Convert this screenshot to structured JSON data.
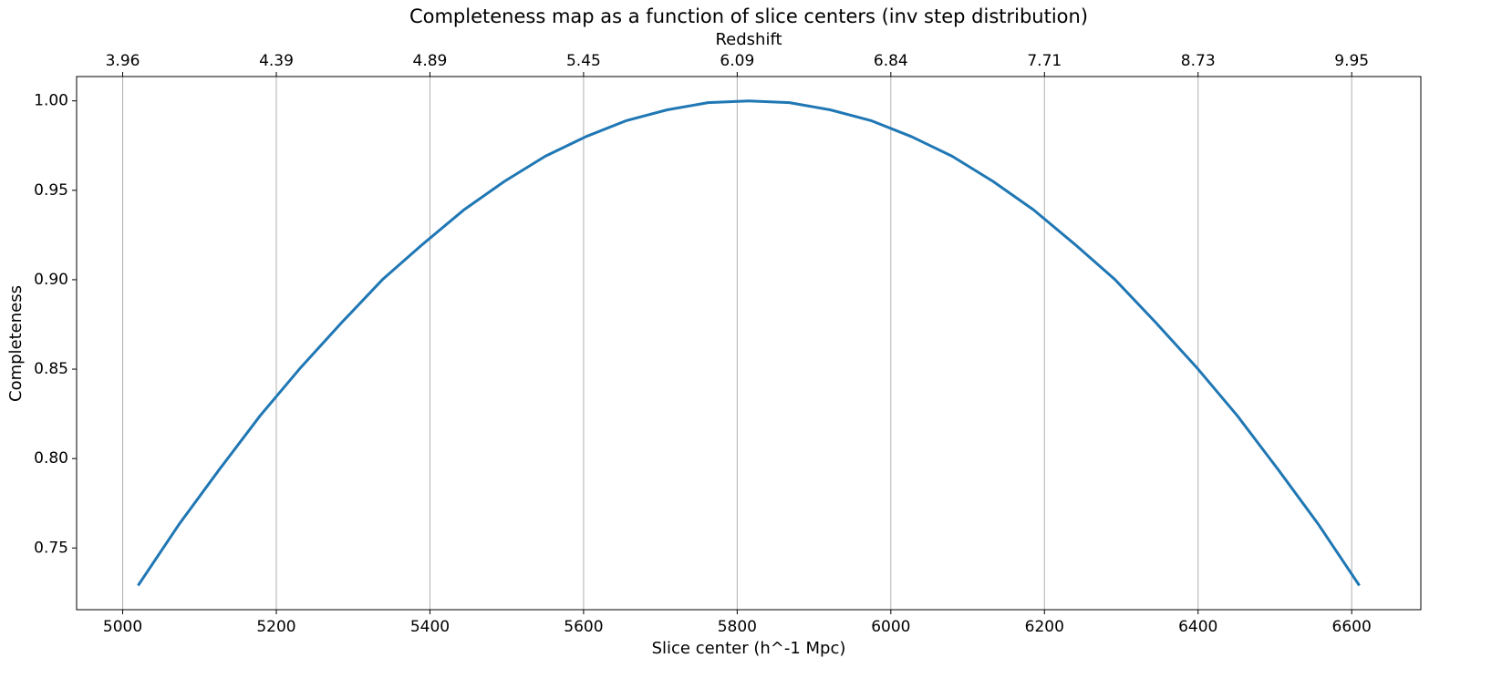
{
  "chart_data": {
    "type": "line",
    "title": "Completeness map as a function of slice centers (inv step distribution)",
    "x_label": "Slice center (h^-1 Mpc)",
    "y_label": "Completeness",
    "x2_label": "Redshift",
    "x": [
      5020,
      5073,
      5126,
      5179,
      5232,
      5285,
      5338,
      5391,
      5444,
      5497,
      5550,
      5603,
      5656,
      5709,
      5762,
      5815,
      5868,
      5921,
      5974,
      6027,
      6080,
      6133,
      6186,
      6239,
      6292,
      6345,
      6398,
      6451,
      6504,
      6557,
      6610
    ],
    "series": [
      {
        "color": "#1f77b4",
        "values": [
          0.729,
          0.763,
          0.794,
          0.824,
          0.851,
          0.876,
          0.9,
          0.92,
          0.939,
          0.955,
          0.969,
          0.98,
          0.989,
          0.995,
          0.999,
          1.0,
          0.999,
          0.995,
          0.989,
          0.98,
          0.969,
          0.955,
          0.939,
          0.92,
          0.9,
          0.876,
          0.851,
          0.824,
          0.794,
          0.763,
          0.729
        ]
      }
    ],
    "xlim": [
      4940,
      6690
    ],
    "ylim": [
      0.7155,
      1.0136
    ],
    "xticks": [
      5000,
      5200,
      5400,
      5600,
      5800,
      6000,
      6200,
      6400,
      6600
    ],
    "x2ticks": [
      {
        "value": 5000,
        "label": "3.96"
      },
      {
        "value": 5200,
        "label": "4.39"
      },
      {
        "value": 5400,
        "label": "4.89"
      },
      {
        "value": 5600,
        "label": "5.45"
      },
      {
        "value": 5800,
        "label": "6.09"
      },
      {
        "value": 6000,
        "label": "6.84"
      },
      {
        "value": 6200,
        "label": "7.71"
      },
      {
        "value": 6400,
        "label": "8.73"
      },
      {
        "value": 6600,
        "label": "9.95"
      }
    ],
    "yticks": [
      0.75,
      {
        "value": 0.8,
        "label": "0.80"
      },
      0.85,
      {
        "value": 0.9,
        "label": "0.90"
      },
      0.95,
      {
        "value": 1,
        "label": "1.00"
      }
    ],
    "grid": "x"
  }
}
